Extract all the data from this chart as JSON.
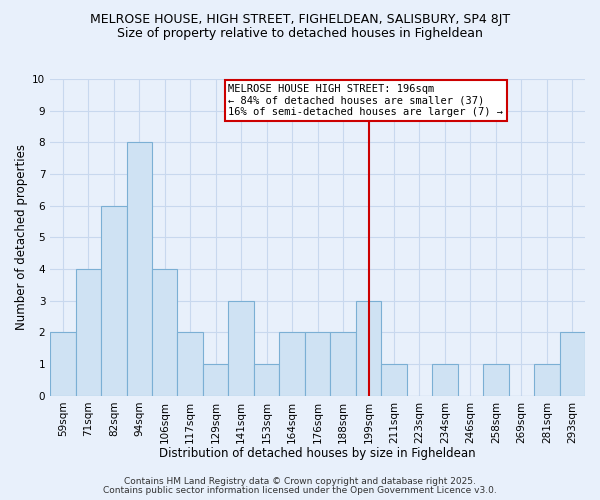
{
  "title": "MELROSE HOUSE, HIGH STREET, FIGHELDEAN, SALISBURY, SP4 8JT",
  "subtitle": "Size of property relative to detached houses in Figheldean",
  "xlabel": "Distribution of detached houses by size in Figheldean",
  "ylabel": "Number of detached properties",
  "bin_labels": [
    "59sqm",
    "71sqm",
    "82sqm",
    "94sqm",
    "106sqm",
    "117sqm",
    "129sqm",
    "141sqm",
    "153sqm",
    "164sqm",
    "176sqm",
    "188sqm",
    "199sqm",
    "211sqm",
    "223sqm",
    "234sqm",
    "246sqm",
    "258sqm",
    "269sqm",
    "281sqm",
    "293sqm"
  ],
  "bar_heights": [
    2,
    4,
    6,
    8,
    4,
    2,
    1,
    3,
    1,
    2,
    2,
    2,
    3,
    1,
    0,
    1,
    0,
    1,
    0,
    1,
    2
  ],
  "bar_color": "#cfe2f3",
  "bar_edge_color": "#7bafd4",
  "grid_color": "#c8d8ee",
  "background_color": "#e8f0fb",
  "vline_x_index": 12,
  "vline_color": "#cc0000",
  "annotation_text": "MELROSE HOUSE HIGH STREET: 196sqm\n← 84% of detached houses are smaller (37)\n16% of semi-detached houses are larger (7) →",
  "annotation_box_color": "#ffffff",
  "annotation_border_color": "#cc0000",
  "ylim": [
    0,
    10
  ],
  "yticks": [
    0,
    1,
    2,
    3,
    4,
    5,
    6,
    7,
    8,
    9,
    10
  ],
  "footer_line1": "Contains HM Land Registry data © Crown copyright and database right 2025.",
  "footer_line2": "Contains public sector information licensed under the Open Government Licence v3.0.",
  "title_fontsize": 9,
  "subtitle_fontsize": 9,
  "xlabel_fontsize": 8.5,
  "ylabel_fontsize": 8.5,
  "tick_fontsize": 7.5,
  "footer_fontsize": 6.5
}
